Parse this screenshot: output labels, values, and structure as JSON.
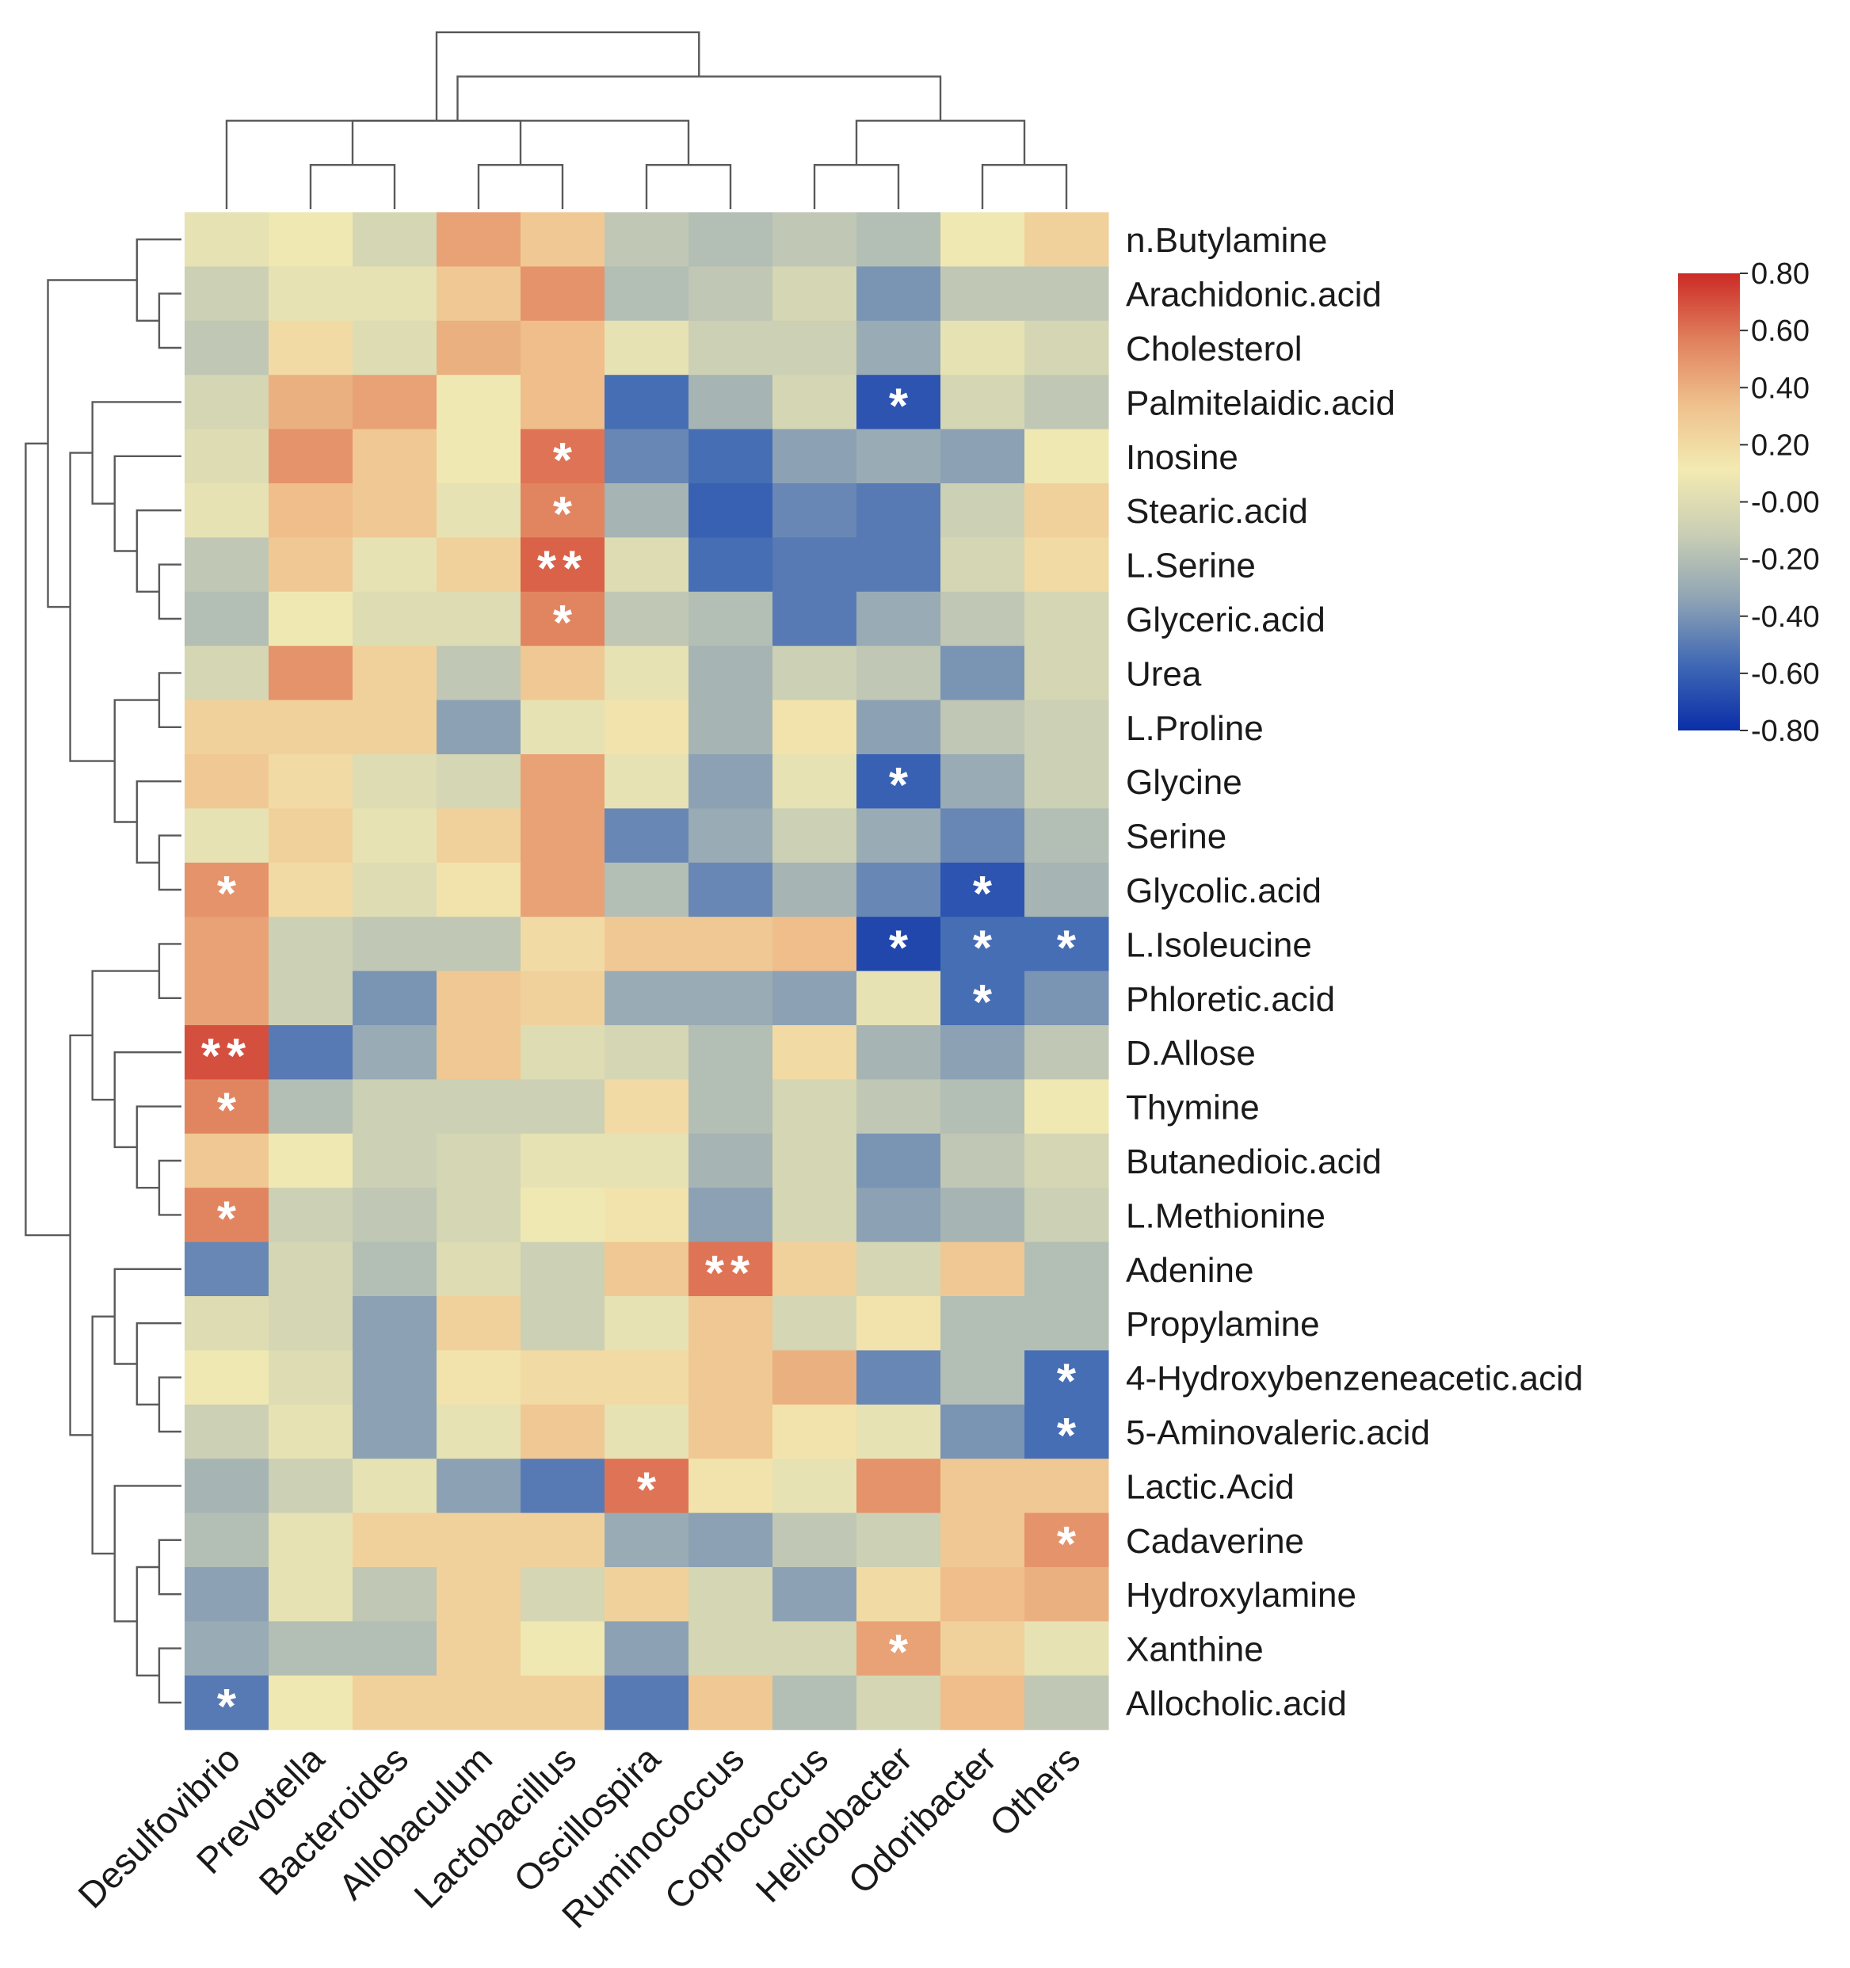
{
  "chart_data": {
    "type": "heatmap",
    "title": "",
    "columns": [
      "Desulfovibrio",
      "Prevotella",
      "Bacteroides",
      "Allobaculum",
      "Lactobacillus",
      "Oscillospira",
      "Ruminococcus",
      "Coprococcus",
      "Helicobacter",
      "Odoribacter",
      "Others"
    ],
    "rows": [
      "n.Butylamine",
      "Arachidonic.acid",
      "Cholesterol",
      "Palmitelaidic.acid",
      "Inosine",
      "Stearic.acid",
      "L.Serine",
      "Glyceric.acid",
      "Urea",
      "L.Proline",
      "Glycine",
      "Serine",
      "Glycolic.acid",
      "L.Isoleucine",
      "Phloretic.acid",
      "D.Allose",
      "Thymine",
      "Butanedioic.acid",
      "L.Methionine",
      "Adenine",
      "Propylamine",
      "4-Hydroxybenzeneacetic.acid",
      "5-Aminovaleric.acid",
      "Lactic.Acid",
      "Cadaverine",
      "Hydroxylamine",
      "Xanthine",
      "Allocholic.acid"
    ],
    "values": [
      [
        0.05,
        0.1,
        -0.05,
        0.45,
        0.3,
        -0.15,
        -0.2,
        -0.15,
        -0.2,
        0.1,
        0.25
      ],
      [
        -0.1,
        0.05,
        0.05,
        0.3,
        0.5,
        -0.2,
        -0.15,
        -0.05,
        -0.4,
        -0.15,
        -0.15
      ],
      [
        -0.15,
        0.2,
        0.0,
        0.4,
        0.35,
        0.05,
        -0.1,
        -0.1,
        -0.3,
        0.05,
        -0.05
      ],
      [
        -0.05,
        0.4,
        0.45,
        0.1,
        0.35,
        -0.55,
        -0.25,
        -0.05,
        -0.65,
        -0.05,
        -0.15
      ],
      [
        0.0,
        0.5,
        0.3,
        0.1,
        0.6,
        -0.45,
        -0.55,
        -0.35,
        -0.3,
        -0.35,
        0.1
      ],
      [
        0.05,
        0.35,
        0.3,
        0.05,
        0.55,
        -0.25,
        -0.6,
        -0.45,
        -0.5,
        -0.1,
        0.25
      ],
      [
        -0.15,
        0.3,
        0.05,
        0.25,
        0.65,
        0.0,
        -0.55,
        -0.5,
        -0.5,
        -0.05,
        0.2
      ],
      [
        -0.2,
        0.1,
        0.0,
        0.0,
        0.55,
        -0.15,
        -0.2,
        -0.5,
        -0.3,
        -0.15,
        -0.05
      ],
      [
        -0.05,
        0.5,
        0.25,
        -0.15,
        0.3,
        0.05,
        -0.25,
        -0.1,
        -0.15,
        -0.4,
        -0.05
      ],
      [
        0.25,
        0.25,
        0.25,
        -0.35,
        0.05,
        0.15,
        -0.25,
        0.15,
        -0.35,
        -0.15,
        -0.1
      ],
      [
        0.3,
        0.2,
        0.0,
        -0.05,
        0.45,
        0.05,
        -0.35,
        0.05,
        -0.6,
        -0.3,
        -0.1
      ],
      [
        0.05,
        0.25,
        0.05,
        0.25,
        0.45,
        -0.45,
        -0.3,
        -0.1,
        -0.3,
        -0.45,
        -0.2
      ],
      [
        0.5,
        0.2,
        0.0,
        0.15,
        0.45,
        -0.2,
        -0.45,
        -0.25,
        -0.45,
        -0.65,
        -0.25
      ],
      [
        0.45,
        -0.1,
        -0.15,
        -0.15,
        0.2,
        0.3,
        0.3,
        0.35,
        -0.7,
        -0.55,
        -0.55
      ],
      [
        0.45,
        -0.1,
        -0.4,
        0.3,
        0.25,
        -0.3,
        -0.3,
        -0.35,
        0.05,
        -0.55,
        -0.4
      ],
      [
        0.7,
        -0.5,
        -0.3,
        0.3,
        0.0,
        -0.05,
        -0.2,
        0.2,
        -0.25,
        -0.35,
        -0.15
      ],
      [
        0.55,
        -0.2,
        -0.1,
        -0.1,
        -0.1,
        0.2,
        -0.2,
        -0.05,
        -0.15,
        -0.2,
        0.1
      ],
      [
        0.3,
        0.1,
        -0.1,
        -0.05,
        0.05,
        0.05,
        -0.25,
        -0.05,
        -0.4,
        -0.15,
        -0.05
      ],
      [
        0.55,
        -0.1,
        -0.15,
        -0.05,
        0.1,
        0.15,
        -0.35,
        -0.05,
        -0.35,
        -0.25,
        -0.1
      ],
      [
        -0.45,
        -0.05,
        -0.2,
        0.0,
        -0.1,
        0.3,
        0.6,
        0.25,
        -0.05,
        0.3,
        -0.2
      ],
      [
        0.0,
        -0.05,
        -0.35,
        0.25,
        -0.1,
        0.05,
        0.3,
        -0.05,
        0.15,
        -0.2,
        -0.2
      ],
      [
        0.1,
        0.0,
        -0.35,
        0.15,
        0.2,
        0.2,
        0.3,
        0.4,
        -0.45,
        -0.2,
        -0.55
      ],
      [
        -0.1,
        0.05,
        -0.35,
        0.05,
        0.3,
        0.05,
        0.3,
        0.15,
        0.05,
        -0.4,
        -0.55
      ],
      [
        -0.25,
        -0.1,
        0.05,
        -0.35,
        -0.5,
        0.6,
        0.15,
        0.05,
        0.5,
        0.3,
        0.3
      ],
      [
        -0.2,
        0.05,
        0.25,
        0.25,
        0.25,
        -0.3,
        -0.35,
        -0.15,
        -0.1,
        0.3,
        0.5
      ],
      [
        -0.35,
        0.05,
        -0.15,
        0.25,
        -0.05,
        0.25,
        -0.05,
        -0.35,
        0.2,
        0.35,
        0.4
      ],
      [
        -0.3,
        -0.2,
        -0.2,
        0.25,
        0.1,
        -0.35,
        -0.05,
        -0.05,
        0.45,
        0.25,
        0.05
      ],
      [
        -0.5,
        0.1,
        0.25,
        0.25,
        0.25,
        -0.5,
        0.3,
        -0.2,
        -0.05,
        0.35,
        -0.15
      ]
    ],
    "significance": [
      [
        "",
        "",
        "",
        "",
        "",
        "",
        "",
        "",
        "",
        "",
        ""
      ],
      [
        "",
        "",
        "",
        "",
        "",
        "",
        "",
        "",
        "",
        "",
        ""
      ],
      [
        "",
        "",
        "",
        "",
        "",
        "",
        "",
        "",
        "",
        "",
        ""
      ],
      [
        "",
        "",
        "",
        "",
        "",
        "",
        "",
        "",
        "*",
        "",
        ""
      ],
      [
        "",
        "",
        "",
        "",
        "*",
        "",
        "",
        "",
        "",
        "",
        ""
      ],
      [
        "",
        "",
        "",
        "",
        "*",
        "",
        "",
        "",
        "",
        "",
        ""
      ],
      [
        "",
        "",
        "",
        "",
        "**",
        "",
        "",
        "",
        "",
        "",
        ""
      ],
      [
        "",
        "",
        "",
        "",
        "*",
        "",
        "",
        "",
        "",
        "",
        ""
      ],
      [
        "",
        "",
        "",
        "",
        "",
        "",
        "",
        "",
        "",
        "",
        ""
      ],
      [
        "",
        "",
        "",
        "",
        "",
        "",
        "",
        "",
        "",
        "",
        ""
      ],
      [
        "",
        "",
        "",
        "",
        "",
        "",
        "",
        "",
        "*",
        "",
        ""
      ],
      [
        "",
        "",
        "",
        "",
        "",
        "",
        "",
        "",
        "",
        "",
        ""
      ],
      [
        "*",
        "",
        "",
        "",
        "",
        "",
        "",
        "",
        "",
        "*",
        ""
      ],
      [
        "",
        "",
        "",
        "",
        "",
        "",
        "",
        "",
        "*",
        "*",
        "*"
      ],
      [
        "",
        "",
        "",
        "",
        "",
        "",
        "",
        "",
        "",
        "*",
        ""
      ],
      [
        "**",
        "",
        "",
        "",
        "",
        "",
        "",
        "",
        "",
        "",
        ""
      ],
      [
        "*",
        "",
        "",
        "",
        "",
        "",
        "",
        "",
        "",
        "",
        ""
      ],
      [
        "",
        "",
        "",
        "",
        "",
        "",
        "",
        "",
        "",
        "",
        ""
      ],
      [
        "*",
        "",
        "",
        "",
        "",
        "",
        "",
        "",
        "",
        "",
        ""
      ],
      [
        "",
        "",
        "",
        "",
        "",
        "",
        "**",
        "",
        "",
        "",
        ""
      ],
      [
        "",
        "",
        "",
        "",
        "",
        "",
        "",
        "",
        "",
        "",
        ""
      ],
      [
        "",
        "",
        "",
        "",
        "",
        "",
        "",
        "",
        "",
        "",
        "*"
      ],
      [
        "",
        "",
        "",
        "",
        "",
        "",
        "",
        "",
        "",
        "",
        "*"
      ],
      [
        "",
        "",
        "",
        "",
        "",
        "*",
        "",
        "",
        "",
        "",
        ""
      ],
      [
        "",
        "",
        "",
        "",
        "",
        "",
        "",
        "",
        "",
        "",
        "*"
      ],
      [
        "",
        "",
        "",
        "",
        "",
        "",
        "",
        "",
        "",
        "",
        ""
      ],
      [
        "",
        "",
        "",
        "",
        "",
        "",
        "",
        "",
        "*",
        "",
        ""
      ],
      [
        "*",
        "",
        "",
        "",
        "",
        "",
        "",
        "",
        "",
        "",
        ""
      ]
    ],
    "colorbar": {
      "range": [
        -0.8,
        0.8
      ],
      "ticks": [
        "0.80",
        "0.60",
        "0.40",
        "0.20",
        "-0.00",
        "-0.20",
        "-0.40",
        "-0.60",
        "-0.80"
      ],
      "colors": [
        "#0a2ea8",
        "#3f68b4",
        "#8ea3b4",
        "#c9ceb4",
        "#f3eab2",
        "#efc08c",
        "#e07f5c",
        "#cc2a26"
      ]
    },
    "dendrogram_top": [
      {
        "a": 1,
        "b": 2
      },
      {
        "a": 3,
        "b": 4
      },
      {
        "a": 5,
        "b": 6
      },
      {
        "a": 7,
        "b": 8
      },
      {
        "a": 9,
        "b": 10
      },
      {
        "a": -2,
        "b": -1
      },
      {
        "a": 0,
        "b": -3
      },
      {
        "a": -4,
        "b": -5
      },
      {
        "a": -7,
        "b": -8
      },
      {
        "a": -6,
        "b": -9
      }
    ],
    "dendrogram_left": [
      {
        "a": 1,
        "b": 2
      },
      {
        "a": 0,
        "b": -1
      },
      {
        "a": 6,
        "b": 7
      },
      {
        "a": 5,
        "b": -3
      },
      {
        "a": 4,
        "b": -4
      },
      {
        "a": 3,
        "b": -5
      },
      {
        "a": 8,
        "b": 9
      },
      {
        "a": 12,
        "b": 11
      },
      {
        "a": 10,
        "b": -8
      },
      {
        "a": -7,
        "b": -9
      },
      {
        "a": -6,
        "b": -10
      },
      {
        "a": -2,
        "b": -11
      },
      {
        "a": 13,
        "b": 14
      },
      {
        "a": 17,
        "b": 18
      },
      {
        "a": 16,
        "b": -14
      },
      {
        "a": 15,
        "b": -15
      },
      {
        "a": -13,
        "b": -16
      },
      {
        "a": 21,
        "b": 22
      },
      {
        "a": 20,
        "b": -18
      },
      {
        "a": 19,
        "b": -19
      },
      {
        "a": 24,
        "b": 25
      },
      {
        "a": 26,
        "b": 27
      },
      {
        "a": -21,
        "b": -22
      },
      {
        "a": 23,
        "b": -23
      },
      {
        "a": -20,
        "b": -24
      },
      {
        "a": -17,
        "b": -25
      },
      {
        "a": -12,
        "b": -26
      }
    ]
  }
}
